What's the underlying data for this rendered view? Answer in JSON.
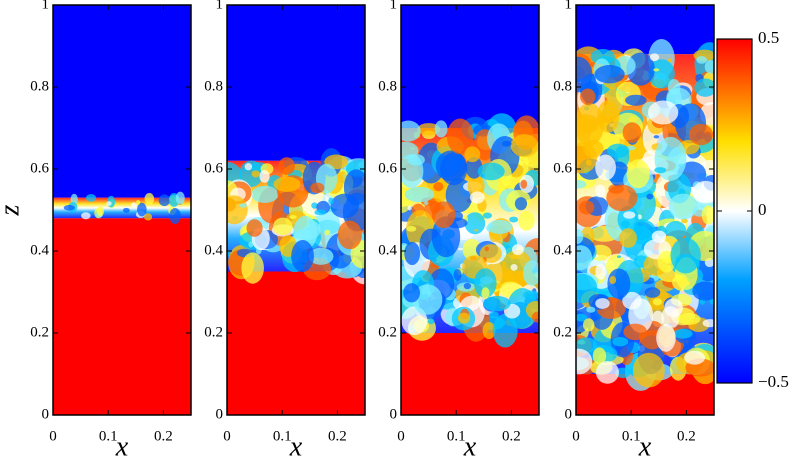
{
  "chart_data": [
    {
      "type": "field",
      "xlabel": "x",
      "ylabel": "z",
      "xlim": [
        0,
        0.25
      ],
      "ylim": [
        0,
        1
      ],
      "xticks": [
        0,
        0.1,
        0.2
      ],
      "yticks": [
        0,
        0.2,
        0.4,
        0.6,
        0.8,
        1
      ],
      "mixing_zone": [
        0.48,
        0.53
      ]
    },
    {
      "type": "field",
      "xlabel": "x",
      "xlim": [
        0,
        0.25
      ],
      "ylim": [
        0,
        1
      ],
      "xticks": [
        0,
        0.1,
        0.2
      ],
      "yticks": [
        0,
        0.2,
        0.4,
        0.6,
        0.8,
        1
      ],
      "mixing_zone": [
        0.35,
        0.62
      ]
    },
    {
      "type": "field",
      "xlabel": "x",
      "xlim": [
        0,
        0.25
      ],
      "ylim": [
        0,
        1
      ],
      "xticks": [
        0,
        0.1,
        0.2
      ],
      "yticks": [
        0,
        0.2,
        0.4,
        0.6,
        0.8,
        1
      ],
      "mixing_zone": [
        0.2,
        0.7
      ]
    },
    {
      "type": "field",
      "xlabel": "x",
      "xlim": [
        0,
        0.25
      ],
      "ylim": [
        0,
        1
      ],
      "xticks": [
        0,
        0.1,
        0.2
      ],
      "yticks": [
        0,
        0.2,
        0.4,
        0.6,
        0.8,
        1
      ],
      "mixing_zone": [
        0.1,
        0.88
      ]
    }
  ],
  "colorbar": {
    "range": [
      -0.5,
      0.5
    ],
    "ticks": [
      {
        "value": -0.5,
        "label": "−0.5"
      },
      0,
      0.5
    ],
    "color_low": "#0000ff",
    "color_high": "#ff0000"
  }
}
